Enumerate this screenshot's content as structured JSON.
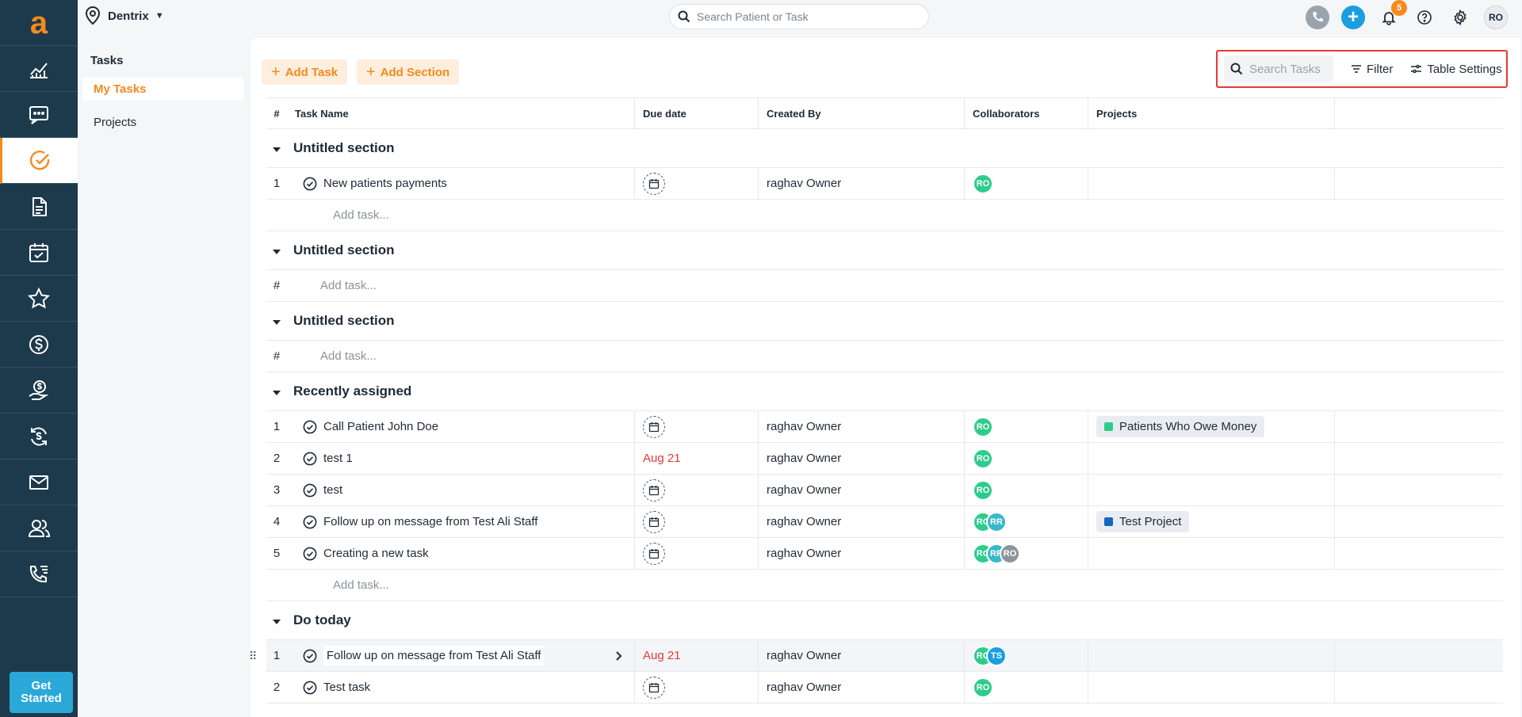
{
  "app": {
    "logo": "a",
    "location": "Dentrix",
    "global_search_placeholder": "Search Patient or Task",
    "notification_count": "5",
    "user_initials": "RO",
    "get_started": "Get Started",
    "accent": "#f58a1f",
    "rail_bg": "#1d3a4c"
  },
  "rail_icons": [
    "analytics-icon",
    "chat-icon",
    "tasks-icon",
    "document-icon",
    "calendar-check-icon",
    "star-icon",
    "dollar-icon",
    "money-hand-icon",
    "dollar-refresh-icon",
    "mail-icon",
    "users-icon",
    "phone-list-icon"
  ],
  "subnav": {
    "title": "Tasks",
    "items": [
      {
        "label": "My Tasks"
      },
      {
        "label": "Projects"
      }
    ]
  },
  "toolbar": {
    "add_task": "Add Task",
    "add_section": "Add Section",
    "search_placeholder": "Search Tasks",
    "filter": "Filter",
    "table_settings": "Table Settings"
  },
  "columns": {
    "num": "#",
    "name": "Task Name",
    "due": "Due date",
    "created": "Created By",
    "collab": "Collaborators",
    "projects": "Projects"
  },
  "add_task_label": "Add task...",
  "sections": [
    {
      "title": "Untitled section",
      "rows": [
        {
          "num": "1",
          "name": "New patients payments",
          "due": "",
          "created": "raghav Owner",
          "collaborators": [
            "RO"
          ],
          "project": ""
        }
      ]
    },
    {
      "title": "Untitled section",
      "rows": []
    },
    {
      "title": "Untitled section",
      "rows": []
    },
    {
      "title": "Recently assigned",
      "rows": [
        {
          "num": "1",
          "name": "Call Patient John Doe",
          "due": "",
          "created": "raghav Owner",
          "collaborators": [
            "RO"
          ],
          "project": "Patients Who Owe Money",
          "project_color": "#2ecc8a"
        },
        {
          "num": "2",
          "name": "test 1",
          "due": "Aug 21",
          "created": "raghav Owner",
          "collaborators": [
            "RO"
          ],
          "project": ""
        },
        {
          "num": "3",
          "name": "test",
          "due": "",
          "created": "raghav Owner",
          "collaborators": [
            "RO"
          ],
          "project": ""
        },
        {
          "num": "4",
          "name": "Follow up on message from Test Ali Staff",
          "due": "",
          "created": "raghav Owner",
          "collaborators": [
            "RO",
            "RR"
          ],
          "project": "Test Project",
          "project_color": "#1565c0"
        },
        {
          "num": "5",
          "name": "Creating a new task",
          "due": "",
          "created": "raghav Owner",
          "collaborators": [
            "RO",
            "RR",
            "RO"
          ],
          "project": ""
        }
      ]
    },
    {
      "title": "Do today",
      "rows": [
        {
          "num": "1",
          "name": "Follow up on message from Test Ali Staff",
          "due": "Aug 21",
          "created": "raghav Owner",
          "collaborators": [
            "RO",
            "TS"
          ],
          "project": ""
        },
        {
          "num": "2",
          "name": "Test task",
          "due": "",
          "created": "raghav Owner",
          "collaborators": [
            "RO"
          ],
          "project": ""
        }
      ]
    }
  ]
}
